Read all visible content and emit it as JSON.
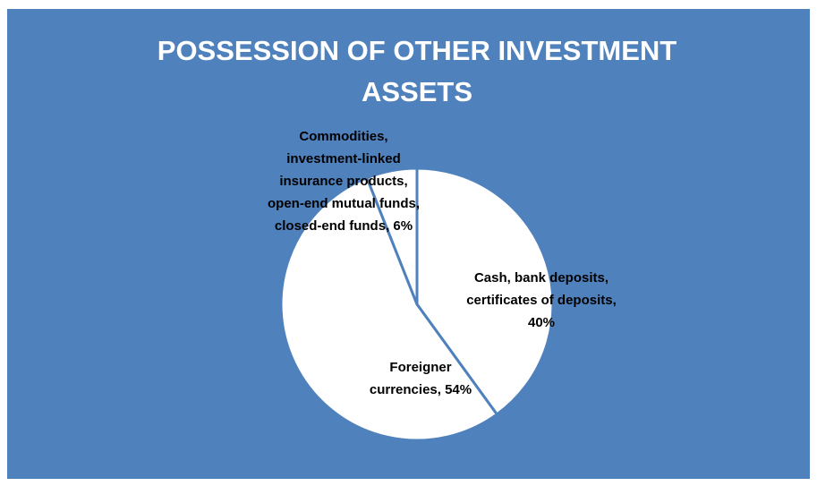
{
  "chart_data": {
    "type": "pie",
    "title": "POSSESSION OF OTHER INVESTMENT ASSETS",
    "values": [
      40,
      54,
      6
    ],
    "value_labels": [
      "Cash, bank deposits, certificates of deposits, 40%",
      "Foreigner currencies, 54%",
      "Commodities, investment-linked insurance products, open-end mutual funds, closed-end funds, 6%"
    ],
    "colors": [
      "#ffffff",
      "#ffffff",
      "#ffffff"
    ],
    "start_angle": 90,
    "direction": "clockwise"
  }
}
